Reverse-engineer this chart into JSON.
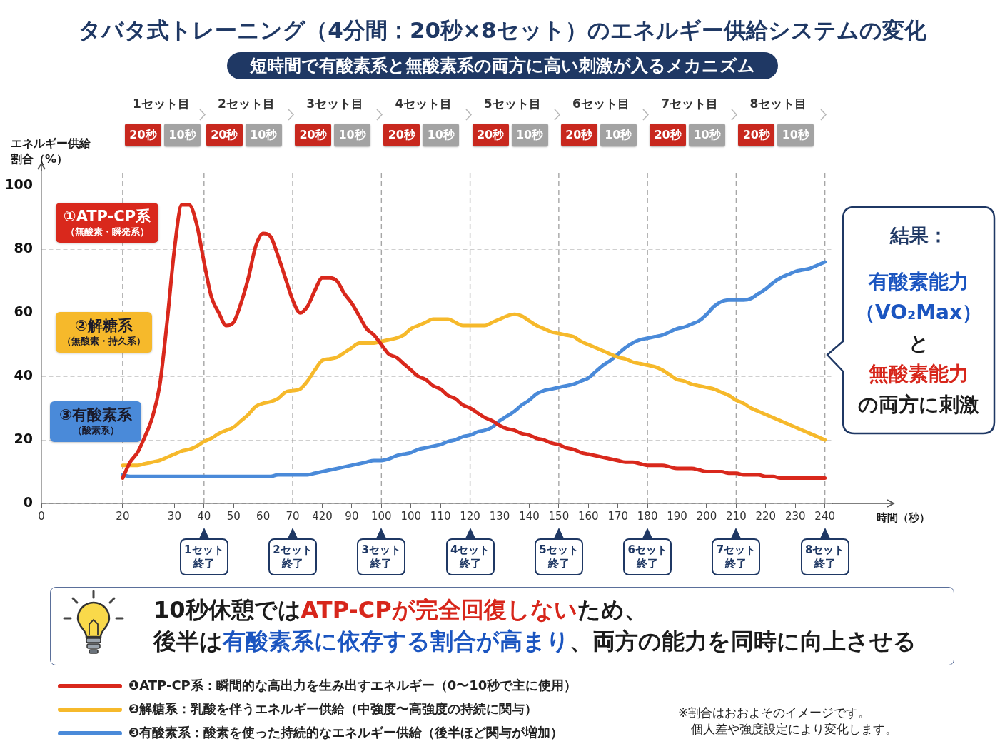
{
  "chart_data": {
    "type": "line",
    "title": "タバタ式トレーニング（4分間：20秒×8セット）のエネルギー供給システムの変化",
    "subtitle": "短時間で有酸素系と無酸素系の両方に高い刺激が入るメカニズム",
    "xlabel": "時間（秒）",
    "ylabel": "エネルギー供給割合（%）",
    "categories": [
      "0",
      null,
      null,
      null,
      null,
      null,
      null,
      null,
      null,
      null,
      null,
      "20",
      null,
      null,
      null,
      null,
      null,
      null,
      "30",
      null,
      null,
      null,
      "40",
      null,
      null,
      null,
      "50",
      null,
      null,
      null,
      "60",
      null,
      null,
      null,
      "70",
      null,
      null,
      null,
      "420",
      null,
      null,
      null,
      "90",
      null,
      null,
      null,
      "100",
      null,
      null,
      null,
      "100",
      null,
      null,
      null,
      "110",
      null,
      null,
      null,
      "120",
      null,
      null,
      null,
      "130",
      null,
      null,
      null,
      "140",
      null,
      null,
      null,
      "150",
      null,
      null,
      null,
      "160",
      null,
      null,
      null,
      "170",
      null,
      null,
      null,
      "180",
      null,
      null,
      null,
      "190",
      null,
      null,
      null,
      "200",
      null,
      null,
      null,
      "210",
      null,
      null,
      null,
      "220",
      null,
      null,
      null,
      "230",
      null,
      null,
      null,
      "240",
      null
    ],
    "ylim": [
      0,
      105
    ],
    "yticks": [
      0,
      20,
      40,
      60,
      80,
      100
    ],
    "grid": "y",
    "legend": "bottom",
    "marker": "none",
    "line_style": "solid",
    "series": [
      {
        "name": "❶ATP-CP系：瞬間的な高出力を生み出すエネルギー（0〜10秒で主に使用）",
        "color": "#d9281c",
        "values": [
          null,
          null,
          null,
          null,
          null,
          null,
          null,
          null,
          null,
          null,
          null,
          8,
          13,
          16,
          21,
          27,
          37,
          57,
          80,
          94,
          94,
          88,
          76,
          65,
          60,
          56,
          57,
          63,
          71,
          81,
          85,
          84,
          78,
          71,
          64,
          60,
          62,
          67,
          71,
          71,
          70,
          66,
          63,
          59,
          55,
          53,
          50,
          47,
          46,
          44,
          42,
          40,
          39,
          37,
          36,
          34,
          33,
          31,
          30,
          28.5,
          27,
          26,
          24.5,
          23.5,
          23,
          22,
          21.5,
          20.5,
          20,
          19,
          18.5,
          17.5,
          17,
          16,
          15.5,
          15,
          14.5,
          14,
          13.5,
          13,
          13,
          12.5,
          12,
          12,
          12,
          11.5,
          11,
          11,
          11,
          10.5,
          10,
          10,
          10,
          9.5,
          9.5,
          9,
          9,
          9,
          8.5,
          8.5,
          8,
          8,
          8,
          8,
          8,
          8,
          8,
          null
        ]
      },
      {
        "name": "❷解糖系：乳酸を伴うエネルギー供給（中強度〜高強度の持続に関与）",
        "color": "#f6b92b",
        "values": [
          null,
          null,
          null,
          null,
          null,
          null,
          null,
          null,
          null,
          null,
          null,
          12,
          12,
          12,
          12.5,
          13,
          13.5,
          14.5,
          15.5,
          16.5,
          17,
          18,
          19.5,
          20.5,
          22,
          23,
          24,
          26,
          28,
          30.5,
          31.5,
          32,
          33,
          35,
          35.5,
          36,
          38.5,
          42,
          45,
          45.5,
          46,
          47.5,
          49,
          50.5,
          50.5,
          50.5,
          51,
          51.5,
          52,
          53,
          55,
          56,
          57,
          58,
          58,
          58,
          57,
          56,
          56,
          56,
          56,
          57,
          58,
          59,
          59.5,
          59,
          57.5,
          56,
          55,
          54,
          53.5,
          53,
          52.5,
          51,
          50,
          49,
          48,
          47,
          46,
          45.5,
          44.5,
          44,
          43.5,
          43,
          42,
          40.5,
          39,
          38.5,
          37.5,
          37,
          36.5,
          36,
          35,
          34,
          32.5,
          31.5,
          30,
          29,
          28,
          27,
          26,
          25,
          24,
          23,
          22,
          21,
          20,
          null
        ]
      },
      {
        "name": "❸有酸素系：酸素を使った持続的なエネルギー供給（後半ほど関与が増加）",
        "color": "#4a8ad9",
        "values": [
          null,
          null,
          null,
          null,
          null,
          null,
          null,
          null,
          null,
          null,
          null,
          9,
          8.5,
          8.5,
          8.5,
          8.5,
          8.5,
          8.5,
          8.5,
          8.5,
          8.5,
          8.5,
          8.5,
          8.5,
          8.5,
          8.5,
          8.5,
          8.5,
          8.5,
          8.5,
          8.5,
          8.5,
          9,
          9,
          9,
          9,
          9,
          9.5,
          10,
          10.5,
          11,
          11.5,
          12,
          12.5,
          13,
          13.5,
          13.5,
          14,
          15,
          15.5,
          16,
          17,
          17.5,
          18,
          18.5,
          19.5,
          20,
          21,
          21.5,
          22.5,
          23,
          24,
          26,
          27.5,
          29,
          31,
          32.5,
          34.5,
          35.5,
          36,
          36.5,
          37,
          37.5,
          38.5,
          39.5,
          41.5,
          43.5,
          45,
          47,
          49,
          50.5,
          51.5,
          52,
          52.5,
          53,
          54,
          55,
          55.5,
          56.5,
          57.5,
          59.5,
          62,
          63.5,
          64,
          64,
          64,
          64.5,
          66,
          67.5,
          69.5,
          71,
          72,
          73,
          73.5,
          74,
          75,
          76,
          null
        ]
      }
    ],
    "ref_lines": [
      {
        "axis": "x",
        "value": "20",
        "color": "#a6a6a6",
        "line_style": "dashed"
      },
      {
        "axis": "x",
        "value": "40",
        "color": "#a6a6a6",
        "line_style": "dashed"
      },
      {
        "axis": "x",
        "value": "70",
        "color": "#a6a6a6",
        "line_style": "dashed"
      },
      {
        "axis": "x",
        "value": "100",
        "color": "#a6a6a6",
        "line_style": "dashed"
      },
      {
        "axis": "x",
        "value": "120",
        "color": "#a6a6a6",
        "line_style": "dashed"
      },
      {
        "axis": "x",
        "value": "150",
        "color": "#a6a6a6",
        "line_style": "dashed"
      },
      {
        "axis": "x",
        "value": "180",
        "color": "#a6a6a6",
        "line_style": "dashed"
      },
      {
        "axis": "x",
        "value": "210",
        "color": "#a6a6a6",
        "line_style": "dashed"
      },
      {
        "axis": "x",
        "value": "240",
        "color": "#a6a6a6",
        "line_style": "dashed"
      }
    ],
    "annotations": [
      "①ATP-CP系",
      "（無酸素・瞬発系）",
      "②解糖系",
      "（無酸素・持久系）",
      "③有酸素系",
      "（酸素系）",
      "結果：",
      "有酸素能力",
      "（VO₂Max）",
      "と",
      "無酸素能力",
      "の両方に刺激",
      "10秒休憩では",
      "ATP-CPが完全回復しない",
      "ため、",
      "後半は",
      "有酸素系に依存する割合が高まり",
      "、両方の能力を同時に向上させる",
      "※割合はおおよそのイメージです。",
      "個人差や強度設定により変化します。",
      "1セット目",
      "20秒",
      "10秒",
      "2セット目",
      "20秒",
      "10秒",
      "3セット目",
      "20秒",
      "10秒",
      "4セット目",
      "20秒",
      "10秒",
      "5セット目",
      "20秒",
      "10秒",
      "6セット目",
      "20秒",
      "10秒",
      "7セット目",
      "20秒",
      "10秒",
      "8セット目",
      "20秒",
      "10秒",
      "1セット終了",
      "2セット終了",
      "3セット終了",
      "4セット終了",
      "5セット終了",
      "6セット終了",
      "7セット終了",
      "8セット終了"
    ]
  }
}
